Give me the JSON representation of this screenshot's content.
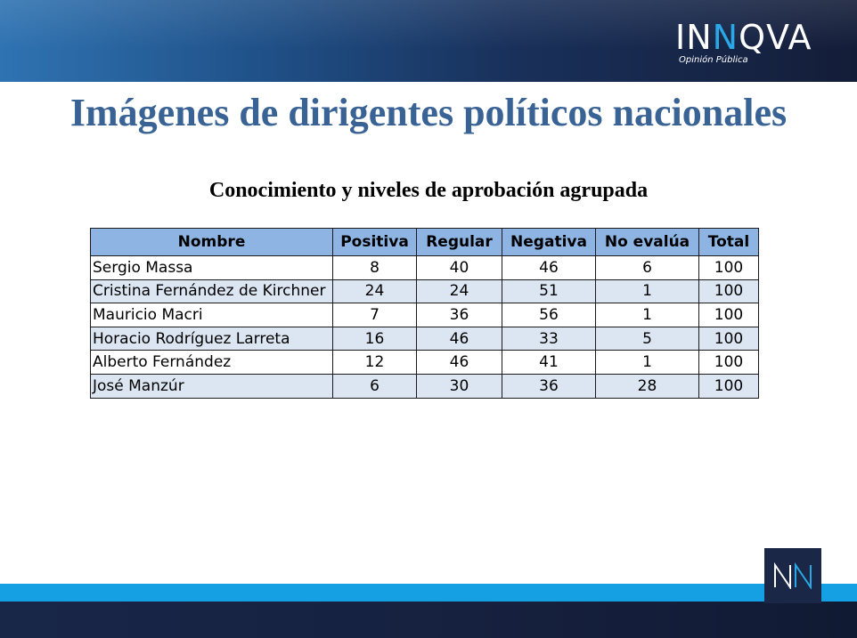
{
  "brand": {
    "logo_lead": "IN",
    "logo_accent": "N",
    "logo_tail": "QVA",
    "tagline": "Opinión Pública",
    "accent_color": "#2aa7e6",
    "badge_text": "NN"
  },
  "page": {
    "title": "Imágenes de dirigentes políticos nacionales",
    "subtitle": "Conocimiento y niveles de aprobación agrupada"
  },
  "table": {
    "headers": [
      "Nombre",
      "Positiva",
      "Regular",
      "Negativa",
      "No evalúa",
      "Total"
    ],
    "rows": [
      [
        "Sergio Massa",
        "8",
        "40",
        "46",
        "6",
        "100"
      ],
      [
        "Cristina Fernández de Kirchner",
        "24",
        "24",
        "51",
        "1",
        "100"
      ],
      [
        "Mauricio Macri",
        "7",
        "36",
        "56",
        "1",
        "100"
      ],
      [
        "Horacio Rodríguez Larreta",
        "16",
        "46",
        "33",
        "5",
        "100"
      ],
      [
        "Alberto Fernández",
        "12",
        "46",
        "41",
        "1",
        "100"
      ],
      [
        "José Manzúr",
        "6",
        "30",
        "36",
        "28",
        "100"
      ]
    ]
  },
  "colors": {
    "header_fill": "#8db4e2",
    "alt_row_fill": "#dce6f2",
    "title_color": "#3a6395",
    "stripe": "#14a0e3"
  }
}
